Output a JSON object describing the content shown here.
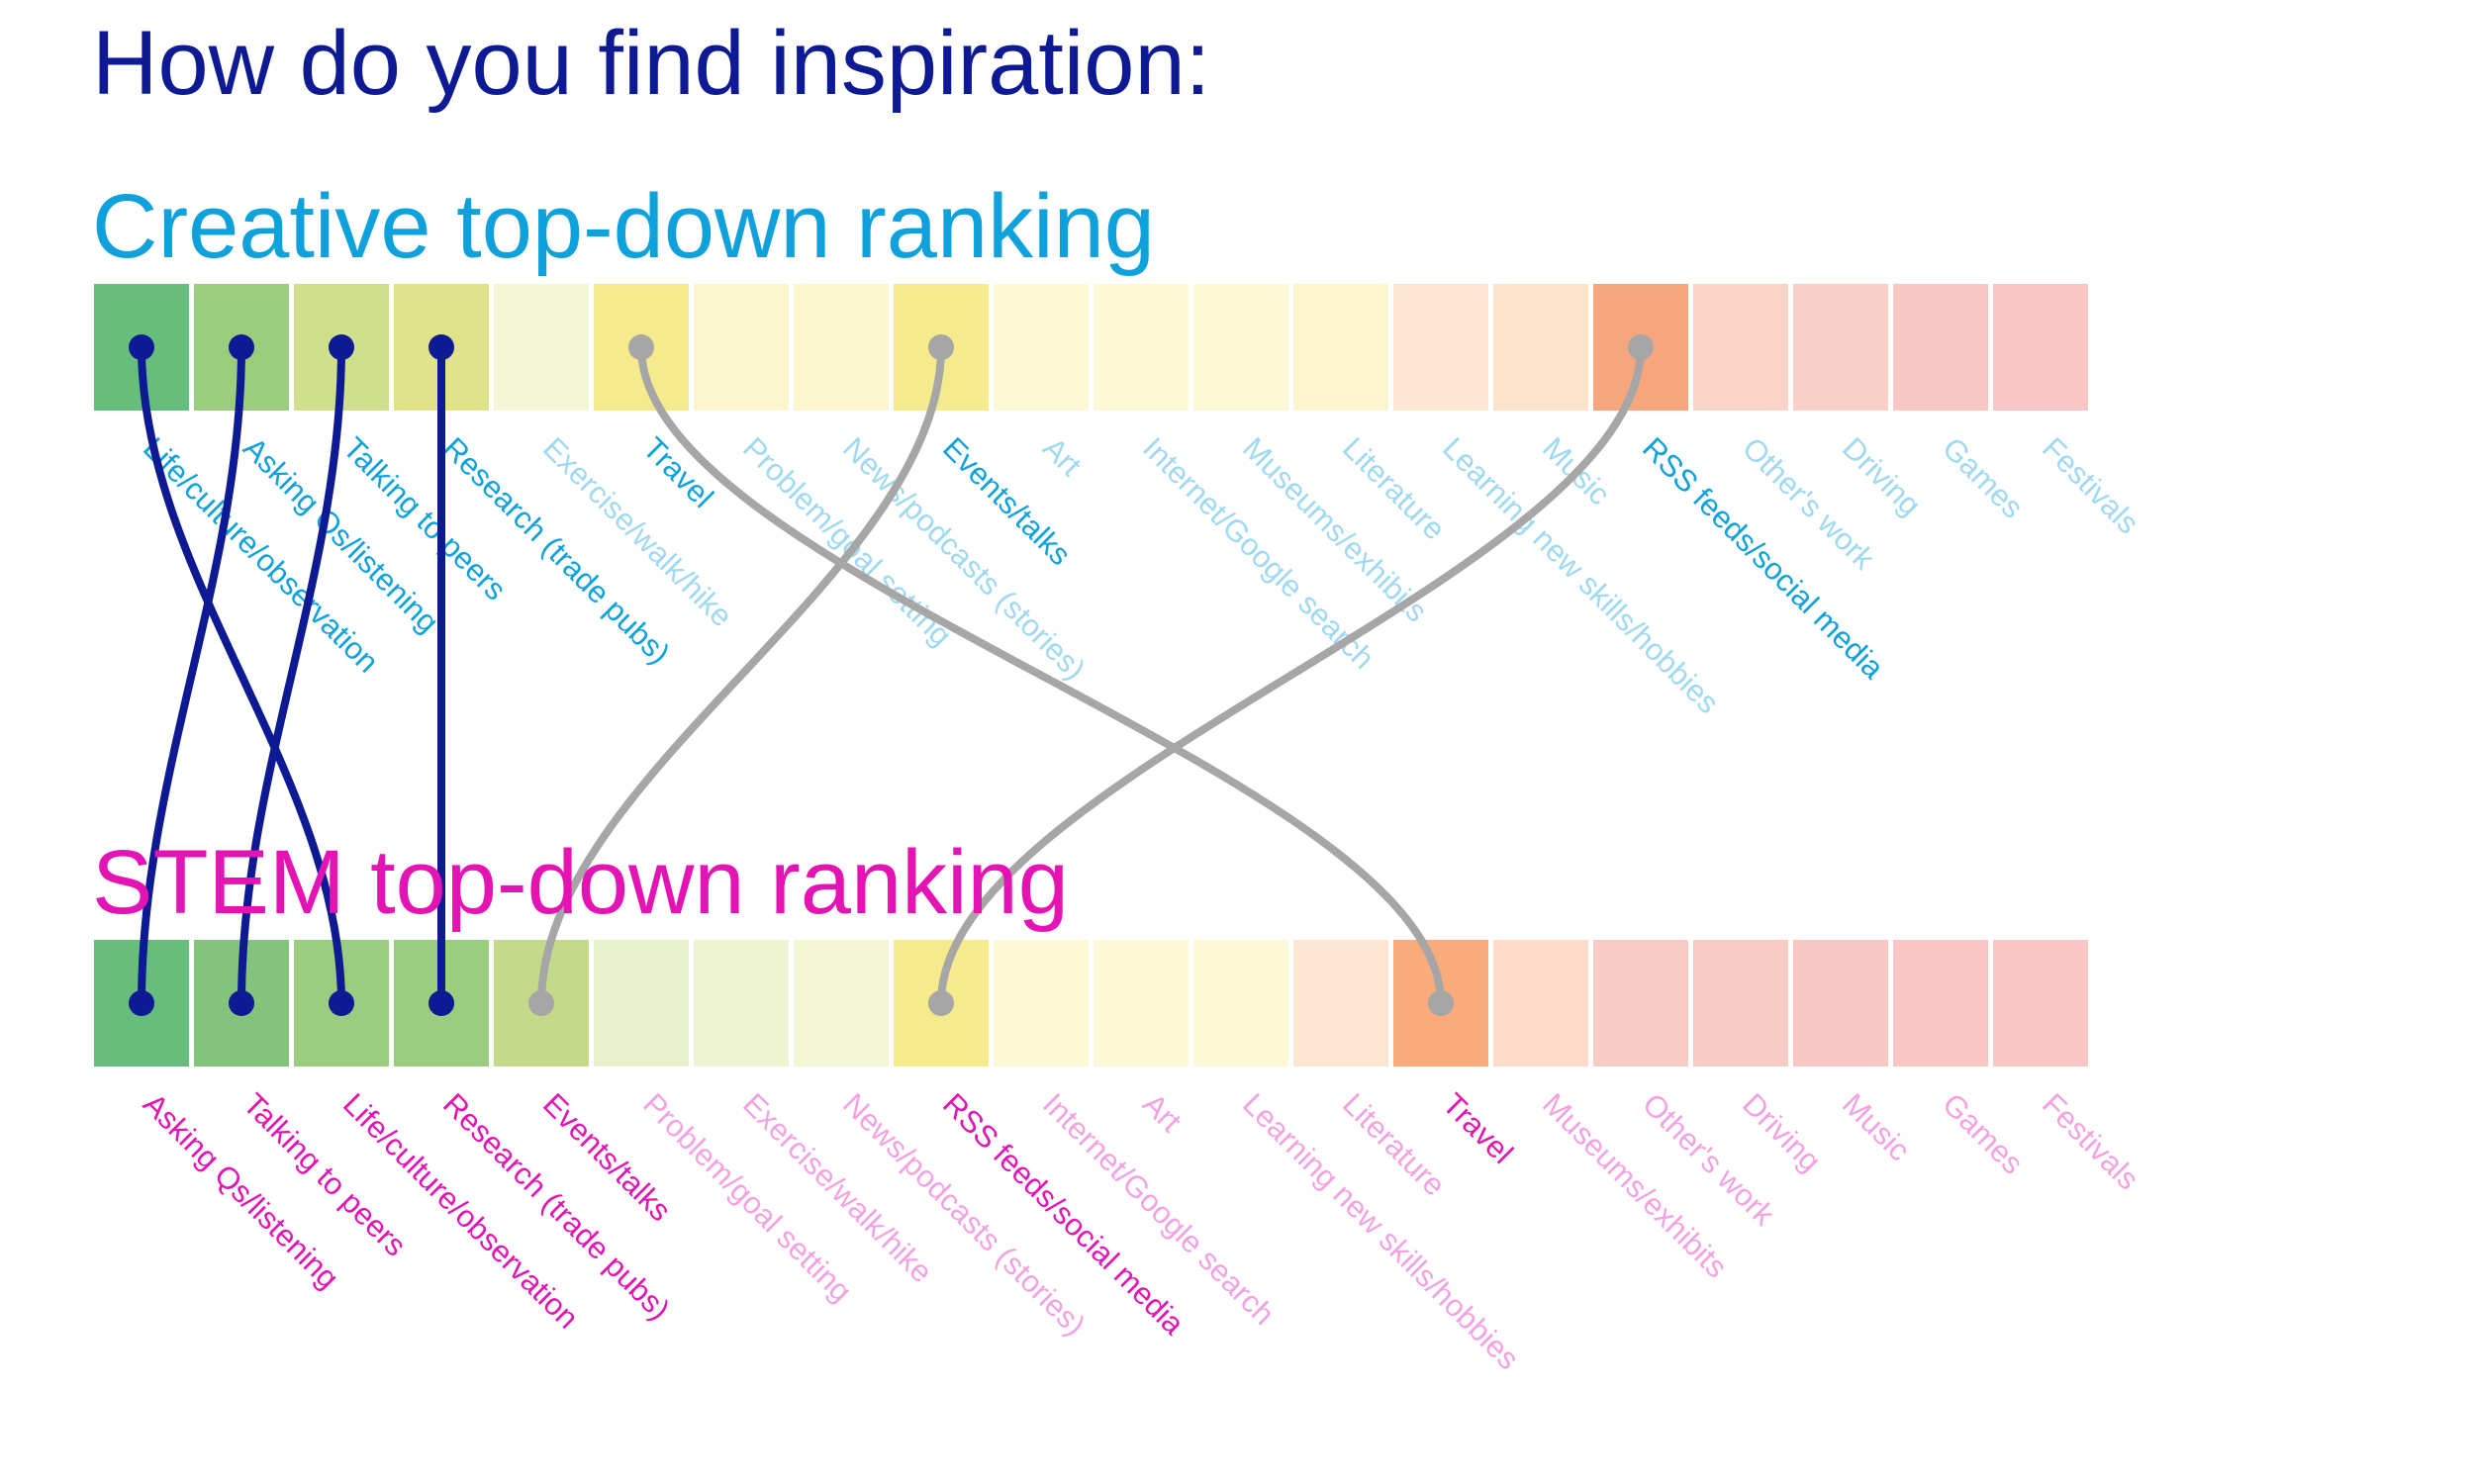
{
  "title": "How do you find inspiration:",
  "palette": {
    "creative_text": "#0ea1dc",
    "stem_text": "#e314b3",
    "link_highlight": "#0d1a94",
    "link_secondary": "#a6a6a6"
  },
  "chart_data": {
    "type": "table",
    "rows": [
      {
        "key": "creative",
        "title": "Creative top-down ranking",
        "labels": [
          "Life/culture/observation",
          "Asking Qs/listening",
          "Talking to peers",
          "Research (trade pubs)",
          "Exercise/walk/hike",
          "Travel",
          "Problem/goal setting",
          "News/podcasts (stories)",
          "Events/talks",
          "Art",
          "Internet/Google search",
          "Museums/exhibits",
          "Literature",
          "Learning new skills/hobbies",
          "Music",
          "RSS feeds/social media",
          "Other's work",
          "Driving",
          "Games",
          "Festivals"
        ],
        "emphasized": [
          true,
          true,
          true,
          true,
          false,
          true,
          false,
          false,
          true,
          false,
          false,
          false,
          false,
          false,
          false,
          true,
          false,
          false,
          false,
          false
        ],
        "colors": [
          "#66bd7c",
          "#9ccd7f",
          "#cfdf8c",
          "#e0e38a",
          "#f4f6d5",
          "#f5ea8c",
          "#fbf5d0",
          "#fbf5d0",
          "#f5ea8c",
          "#fdf8d5",
          "#fdf8d5",
          "#fdf8d5",
          "#fdf4d0",
          "#fde6d2",
          "#fde3c9",
          "#f7a57c",
          "#fad5c7",
          "#f9d0c8",
          "#f9c8c5",
          "#f9c6c5"
        ]
      },
      {
        "key": "stem",
        "title": "STEM top-down ranking",
        "labels": [
          "Asking Qs/listening",
          "Talking to peers",
          "Life/culture/observation",
          "Research (trade pubs)",
          "Events/talks",
          "Problem/goal setting",
          "Exercise/walk/hike",
          "News/podcasts (stories)",
          "RSS feeds/social media",
          "Internet/Google search",
          "Art",
          "Learning new skills/hobbies",
          "Literature",
          "Travel",
          "Museums/exhibits",
          "Other's work",
          "Driving",
          "Music",
          "Games",
          "Festivals"
        ],
        "emphasized": [
          true,
          true,
          true,
          true,
          true,
          false,
          false,
          false,
          true,
          false,
          false,
          false,
          false,
          true,
          false,
          false,
          false,
          false,
          false,
          false
        ],
        "colors": [
          "#66bd7c",
          "#82c47c",
          "#9acd80",
          "#9acd80",
          "#c4d989",
          "#e9f1cc",
          "#eef3d2",
          "#f3f6d5",
          "#f5ea8c",
          "#fdf8d5",
          "#fdf8d5",
          "#fdf8d5",
          "#fde6d2",
          "#f9ab7c",
          "#fddcc9",
          "#f9cbc5",
          "#f9cbc5",
          "#f9c8c5",
          "#f9c6c5",
          "#f9c6c5"
        ]
      }
    ],
    "links": [
      {
        "from": 0,
        "to": 2,
        "group": "highlight"
      },
      {
        "from": 1,
        "to": 0,
        "group": "highlight"
      },
      {
        "from": 2,
        "to": 1,
        "group": "highlight"
      },
      {
        "from": 3,
        "to": 3,
        "group": "highlight"
      },
      {
        "from": 5,
        "to": 13,
        "group": "secondary"
      },
      {
        "from": 8,
        "to": 4,
        "group": "secondary"
      },
      {
        "from": 15,
        "to": 8,
        "group": "secondary"
      }
    ]
  }
}
